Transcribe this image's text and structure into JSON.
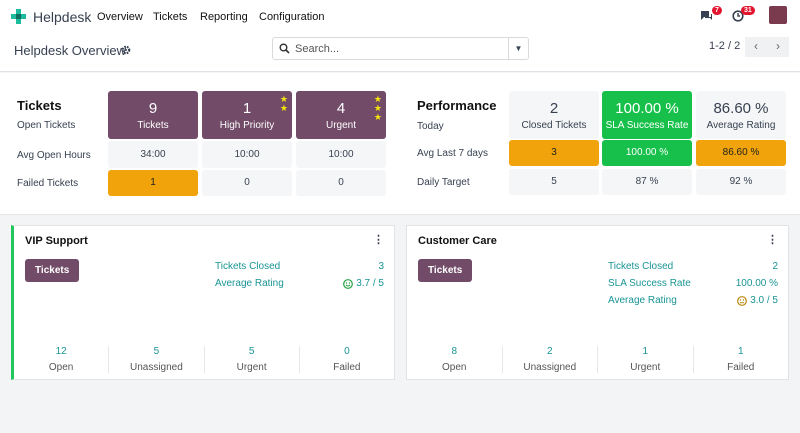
{
  "nav": {
    "app": "Helpdesk",
    "menu": [
      "Overview",
      "Tickets",
      "Reporting",
      "Configuration"
    ],
    "messages_count": "7",
    "activities_count": "31"
  },
  "control": {
    "title": "Helpdesk Overview",
    "search_placeholder": "Search...",
    "pager": "1-2 / 2"
  },
  "tickets": {
    "heading": "Tickets",
    "rows": [
      "Open Tickets",
      "Avg Open Hours",
      "Failed Tickets"
    ],
    "top": [
      {
        "n": "9",
        "l": "Tickets"
      },
      {
        "n": "1",
        "l": "High Priority"
      },
      {
        "n": "4",
        "l": "Urgent"
      }
    ],
    "avg": [
      "34:00",
      "10:00",
      "10:00"
    ],
    "failed": [
      "1",
      "0",
      "0"
    ]
  },
  "performance": {
    "heading": "Performance",
    "rows": [
      "Today",
      "Avg Last 7 days",
      "Daily Target"
    ],
    "top": [
      {
        "n": "2",
        "l": "Closed Tickets"
      },
      {
        "n": "100.00 %",
        "l": "SLA Success Rate"
      },
      {
        "n": "86.60 %",
        "l": "Average Rating"
      }
    ],
    "avg": [
      "3",
      "100.00 %",
      "86.60 %"
    ],
    "target": [
      "5",
      "87 %",
      "92 %"
    ]
  },
  "colors": {
    "primary": "#714b67",
    "success": "#17c04b",
    "warning": "#f0a30a",
    "accent": "#1a9494"
  },
  "teams": [
    {
      "name": "VIP Support",
      "button": "Tickets",
      "stats": [
        {
          "k": "Tickets Closed",
          "v": "3"
        },
        {
          "k": "Average Rating",
          "v": "3.7 / 5"
        }
      ],
      "foot": [
        {
          "v": "12",
          "k": "Open"
        },
        {
          "v": "5",
          "k": "Unassigned"
        },
        {
          "v": "5",
          "k": "Urgent"
        },
        {
          "v": "0",
          "k": "Failed"
        }
      ]
    },
    {
      "name": "Customer Care",
      "button": "Tickets",
      "stats": [
        {
          "k": "Tickets Closed",
          "v": "2"
        },
        {
          "k": "SLA Success Rate",
          "v": "100.00 %"
        },
        {
          "k": "Average Rating",
          "v": "3.0 / 5"
        }
      ],
      "foot": [
        {
          "v": "8",
          "k": "Open"
        },
        {
          "v": "2",
          "k": "Unassigned"
        },
        {
          "v": "1",
          "k": "Urgent"
        },
        {
          "v": "1",
          "k": "Failed"
        }
      ]
    }
  ]
}
